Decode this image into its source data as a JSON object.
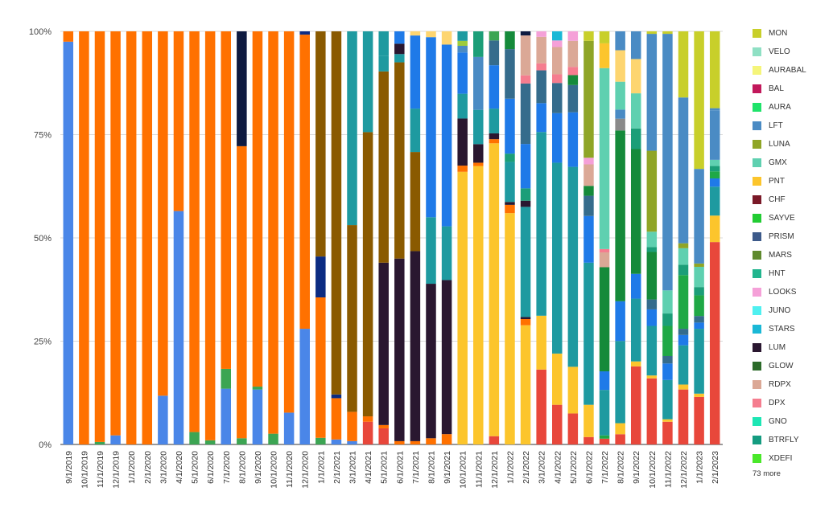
{
  "chart_data": {
    "type": "bar",
    "stacked": "percent",
    "grid": true,
    "legend_placement": "right",
    "yticks": [
      "0%",
      "25%",
      "50%",
      "75%",
      "100%"
    ],
    "categories": [
      "9/1/2019",
      "10/1/2019",
      "11/1/2019",
      "12/1/2019",
      "1/1/2020",
      "2/1/2020",
      "3/1/2020",
      "4/1/2020",
      "5/1/2020",
      "6/1/2020",
      "7/1/2020",
      "8/1/2020",
      "9/1/2020",
      "10/1/2020",
      "11/1/2020",
      "12/1/2020",
      "1/1/2021",
      "2/1/2021",
      "3/1/2021",
      "4/1/2021",
      "5/1/2021",
      "6/1/2021",
      "7/1/2021",
      "8/1/2021",
      "9/1/2021",
      "10/1/2021",
      "11/1/2021",
      "12/1/2021",
      "1/1/2022",
      "2/1/2022",
      "3/1/2022",
      "4/1/2022",
      "5/1/2022",
      "6/1/2022",
      "7/1/2022",
      "8/1/2022",
      "9/1/2022",
      "10/1/2022",
      "11/1/2022",
      "12/1/2022",
      "1/1/2023",
      "2/1/2023"
    ],
    "legend": [
      {
        "name": "MON",
        "color": "#c8cf2a"
      },
      {
        "name": "VELO",
        "color": "#8fe0c4"
      },
      {
        "name": "AURABAL",
        "color": "#f5f57a"
      },
      {
        "name": "BAL",
        "color": "#c2185b"
      },
      {
        "name": "AURA",
        "color": "#1fe36a"
      },
      {
        "name": "LFT",
        "color": "#4a8bc4"
      },
      {
        "name": "LUNA",
        "color": "#8fa526"
      },
      {
        "name": "GMX",
        "color": "#5fd0b0"
      },
      {
        "name": "PNT",
        "color": "#fcc52c"
      },
      {
        "name": "CHF",
        "color": "#7a1928"
      },
      {
        "name": "SAYVE",
        "color": "#22cc33"
      },
      {
        "name": "PRISM",
        "color": "#3d5a8a"
      },
      {
        "name": "MARS",
        "color": "#5f8a2e"
      },
      {
        "name": "HNT",
        "color": "#22b58e"
      },
      {
        "name": "LOOKS",
        "color": "#f5a0d8"
      },
      {
        "name": "JUNO",
        "color": "#4ff0f0"
      },
      {
        "name": "STARS",
        "color": "#1ab8d6"
      },
      {
        "name": "LUM",
        "color": "#2a1730"
      },
      {
        "name": "GLOW",
        "color": "#2c6b2a"
      },
      {
        "name": "RDPX",
        "color": "#dba896"
      },
      {
        "name": "DPX",
        "color": "#f57d8f"
      },
      {
        "name": "GNO",
        "color": "#1de6b4"
      },
      {
        "name": "BTRFLY",
        "color": "#149c80"
      },
      {
        "name": "XDEFI",
        "color": "#4ae82a"
      }
    ],
    "more_label": "73 more",
    "segment_palette": {
      "blue": "#4a86e8",
      "orange": "#ff7100",
      "green": "#3ca553",
      "navy": "#0e1a40",
      "darknavy": "#0b2b82",
      "brown": "#8a5a00",
      "teal": "#1e9aa0",
      "darkpurple": "#2a1730",
      "red": "#e8473b",
      "yellow": "#fcc52c",
      "brightblue": "#1f7ae8",
      "medblue": "#4a8bc4",
      "seagreen": "#1b9e78",
      "midgreen": "#158a3a",
      "paleyellow": "#fdd570",
      "maroon": "#7a1928",
      "tan": "#dba896",
      "pink": "#f57d8f",
      "lightpink": "#f5a0d8",
      "mint": "#5fd0b0",
      "lime": "#9ecc3b",
      "olive": "#8fa526",
      "mon": "#c8cf2a",
      "bgreen": "#1fa846",
      "gray": "#8a8a8a",
      "slate": "#356c8c",
      "cyan": "#1ab8d6",
      "lightgreen": "#4ae82a"
    },
    "stacks": [
      [
        [
          "blue",
          97.5
        ],
        [
          "orange",
          2.5
        ]
      ],
      [
        [
          "orange",
          100
        ]
      ],
      [
        [
          "green",
          0.6
        ],
        [
          "orange",
          99.4
        ]
      ],
      [
        [
          "blue",
          2.2
        ],
        [
          "orange",
          97.8
        ]
      ],
      [
        [
          "orange",
          100
        ]
      ],
      [
        [
          "orange",
          100
        ]
      ],
      [
        [
          "blue",
          11.8
        ],
        [
          "orange",
          88.2
        ]
      ],
      [
        [
          "blue",
          56.5
        ],
        [
          "orange",
          43.5
        ]
      ],
      [
        [
          "green",
          3
        ],
        [
          "orange",
          97
        ]
      ],
      [
        [
          "green",
          1
        ],
        [
          "orange",
          99
        ]
      ],
      [
        [
          "blue",
          13.5
        ],
        [
          "green",
          4.8
        ],
        [
          "orange",
          81.7
        ]
      ],
      [
        [
          "green",
          1.5
        ],
        [
          "orange",
          70.7
        ],
        [
          "navy",
          27.8
        ]
      ],
      [
        [
          "blue",
          13.3
        ],
        [
          "green",
          0.7
        ],
        [
          "orange",
          86
        ]
      ],
      [
        [
          "green",
          2.6
        ],
        [
          "orange",
          97.4
        ]
      ],
      [
        [
          "blue",
          7.7
        ],
        [
          "orange",
          92.3
        ]
      ],
      [
        [
          "blue",
          28
        ],
        [
          "orange",
          71.2
        ],
        [
          "darknavy",
          0.8
        ]
      ],
      [
        [
          "green",
          1.6
        ],
        [
          "orange",
          34
        ],
        [
          "darknavy",
          9.9
        ],
        [
          "brown",
          54.5
        ]
      ],
      [
        [
          "blue",
          1.2
        ],
        [
          "orange",
          10
        ],
        [
          "darknavy",
          0.9
        ],
        [
          "brown",
          87.9
        ]
      ],
      [
        [
          "blue",
          0.8
        ],
        [
          "orange",
          7.1
        ],
        [
          "brown",
          45.2
        ],
        [
          "teal",
          46.9
        ]
      ],
      [
        [
          "red",
          5.5
        ],
        [
          "orange",
          1.3
        ],
        [
          "brown",
          68.8
        ],
        [
          "teal",
          24.4
        ]
      ],
      [
        [
          "red",
          3.9
        ],
        [
          "orange",
          0.8
        ],
        [
          "darkpurple",
          39.3
        ],
        [
          "brown",
          46.3
        ],
        [
          "teal",
          3.8
        ],
        [
          "teal",
          5.9
        ]
      ],
      [
        [
          "orange",
          0.8
        ],
        [
          "darkpurple",
          44.2
        ],
        [
          "brown",
          47.5
        ],
        [
          "teal",
          2
        ],
        [
          "darkpurple",
          2.5
        ],
        [
          "brightblue",
          3
        ]
      ],
      [
        [
          "orange",
          0.8
        ],
        [
          "darkpurple",
          46
        ],
        [
          "brown",
          24
        ],
        [
          "teal",
          10.5
        ],
        [
          "brightblue",
          17.7
        ],
        [
          "paleyellow",
          1
        ]
      ],
      [
        [
          "orange",
          1.5
        ],
        [
          "darkpurple",
          37.4
        ],
        [
          "teal",
          16.1
        ],
        [
          "brightblue",
          43.6
        ],
        [
          "paleyellow",
          1.4
        ]
      ],
      [
        [
          "orange",
          2.5
        ],
        [
          "darkpurple",
          37.3
        ],
        [
          "teal",
          13
        ],
        [
          "brightblue",
          44
        ],
        [
          "paleyellow",
          3.2
        ]
      ],
      [
        [
          "yellow",
          66
        ],
        [
          "orange",
          1.5
        ],
        [
          "darkpurple",
          11.4
        ],
        [
          "teal",
          6
        ],
        [
          "brightblue",
          10
        ],
        [
          "medblue",
          1.6
        ],
        [
          "lime",
          1.2
        ],
        [
          "teal",
          2.3
        ]
      ],
      [
        [
          "yellow",
          67.4
        ],
        [
          "orange",
          0.8
        ],
        [
          "darkpurple",
          4.5
        ],
        [
          "teal",
          8.3
        ],
        [
          "medblue",
          12.8
        ],
        [
          "seagreen",
          6.2
        ]
      ],
      [
        [
          "red",
          2
        ],
        [
          "yellow",
          70.9
        ],
        [
          "orange",
          1
        ],
        [
          "darkpurple",
          1.4
        ],
        [
          "teal",
          6
        ],
        [
          "brightblue",
          10.5
        ],
        [
          "slate",
          6
        ],
        [
          "green",
          2.2
        ]
      ],
      [
        [
          "yellow",
          56
        ],
        [
          "orange",
          2
        ],
        [
          "darkpurple",
          0.7
        ],
        [
          "teal",
          9.7
        ],
        [
          "seagreen",
          2
        ],
        [
          "brightblue",
          13.3
        ],
        [
          "slate",
          12
        ],
        [
          "midgreen",
          4.3
        ]
      ],
      [
        [
          "yellow",
          29
        ],
        [
          "orange",
          1.5
        ],
        [
          "darkpurple",
          0.5
        ],
        [
          "teal",
          26.8
        ],
        [
          "darkpurple",
          1.5
        ],
        [
          "seagreen",
          3
        ],
        [
          "brightblue",
          10.8
        ],
        [
          "slate",
          14.7
        ],
        [
          "pink",
          2
        ],
        [
          "tan",
          9.7
        ],
        [
          "navy",
          1
        ]
      ],
      [
        [
          "red",
          19.2
        ],
        [
          "yellow",
          13.8
        ],
        [
          "teal",
          47.1
        ],
        [
          "brightblue",
          7.4
        ],
        [
          "slate",
          8.4
        ],
        [
          "pink",
          1.8
        ],
        [
          "tan",
          6.8
        ],
        [
          "lightpink",
          1.4
        ]
      ],
      [
        [
          "red",
          9.6
        ],
        [
          "yellow",
          12.4
        ],
        [
          "teal",
          46.2
        ],
        [
          "brightblue",
          12
        ],
        [
          "slate",
          7.3
        ],
        [
          "pink",
          2.1
        ],
        [
          "tan",
          6.6
        ],
        [
          "lightpink",
          1.6
        ],
        [
          "cyan",
          2.2
        ]
      ],
      [
        [
          "red",
          7.5
        ],
        [
          "yellow",
          11.3
        ],
        [
          "teal",
          48.4
        ],
        [
          "brightblue",
          13.2
        ],
        [
          "slate",
          6.6
        ],
        [
          "midgreen",
          2.4
        ],
        [
          "pink",
          2
        ],
        [
          "tan",
          6.3
        ],
        [
          "lightpink",
          2.3
        ]
      ],
      [
        [
          "red",
          1.8
        ],
        [
          "yellow",
          7.8
        ],
        [
          "teal",
          34.4
        ],
        [
          "brightblue",
          11.3
        ],
        [
          "slate",
          4.9
        ],
        [
          "midgreen",
          2.4
        ],
        [
          "tan",
          5.2
        ],
        [
          "lightpink",
          1.6
        ],
        [
          "olive",
          28.3
        ],
        [
          "mon",
          2.3
        ]
      ],
      [
        [
          "red",
          1.4
        ],
        [
          "bgreen",
          0.8
        ],
        [
          "teal",
          11
        ],
        [
          "brightblue",
          4.5
        ],
        [
          "midgreen",
          25.2
        ],
        [
          "tan",
          3.6
        ],
        [
          "pink",
          0.8
        ],
        [
          "mint",
          43.8
        ],
        [
          "yellow",
          6
        ],
        [
          "mon",
          2.9
        ]
      ],
      [
        [
          "red",
          2.6
        ],
        [
          "yellow",
          2.8
        ],
        [
          "teal",
          20.9
        ],
        [
          "brightblue",
          10.1
        ],
        [
          "midgreen",
          43.4
        ],
        [
          "gray",
          3
        ],
        [
          "medblue",
          2.3
        ],
        [
          "mint",
          7.1
        ],
        [
          "paleyellow",
          8
        ],
        [
          "medblue",
          4.8
        ]
      ],
      [
        [
          "red",
          18.9
        ],
        [
          "yellow",
          1.2
        ],
        [
          "teal",
          15.2
        ],
        [
          "brightblue",
          6
        ],
        [
          "midgreen",
          30.2
        ],
        [
          "seagreen",
          5
        ],
        [
          "mint",
          8.5
        ],
        [
          "paleyellow",
          8.3
        ],
        [
          "medblue",
          6.7
        ]
      ],
      [
        [
          "red",
          16
        ],
        [
          "yellow",
          0.7
        ],
        [
          "teal",
          12
        ],
        [
          "brightblue",
          4
        ],
        [
          "slate",
          2.4
        ],
        [
          "midgreen",
          11.5
        ],
        [
          "seagreen",
          1.2
        ],
        [
          "mint",
          3.7
        ],
        [
          "olive",
          19.6
        ],
        [
          "medblue",
          28.3
        ],
        [
          "mon",
          0.6
        ]
      ],
      [
        [
          "red",
          5.5
        ],
        [
          "yellow",
          0.6
        ],
        [
          "teal",
          9.5
        ],
        [
          "brightblue",
          4
        ],
        [
          "slate",
          1.8
        ],
        [
          "bgreen",
          7.3
        ],
        [
          "seagreen",
          3
        ],
        [
          "mint",
          5.6
        ],
        [
          "medblue",
          62.1
        ],
        [
          "mon",
          0.6
        ]
      ],
      [
        [
          "red",
          13.3
        ],
        [
          "yellow",
          1.2
        ],
        [
          "teal",
          9.5
        ],
        [
          "brightblue",
          2.5
        ],
        [
          "slate",
          1.5
        ],
        [
          "bgreen",
          13
        ],
        [
          "seagreen",
          2.5
        ],
        [
          "mint",
          4
        ],
        [
          "olive",
          1.2
        ],
        [
          "medblue",
          35.3
        ],
        [
          "mon",
          16
        ]
      ],
      [
        [
          "red",
          11.5
        ],
        [
          "yellow",
          0.8
        ],
        [
          "teal",
          15.7
        ],
        [
          "brightblue",
          1.5
        ],
        [
          "slate",
          1.6
        ],
        [
          "bgreen",
          5
        ],
        [
          "seagreen",
          2
        ],
        [
          "mint",
          4.9
        ],
        [
          "olive",
          0.8
        ],
        [
          "medblue",
          22.9
        ],
        [
          "mon",
          33.3
        ]
      ],
      [
        [
          "red",
          49
        ],
        [
          "yellow",
          6.4
        ],
        [
          "teal",
          7
        ],
        [
          "brightblue",
          2
        ],
        [
          "bgreen",
          1.7
        ],
        [
          "seagreen",
          1.3
        ],
        [
          "mint",
          1.5
        ],
        [
          "medblue",
          12
        ],
        [
          "medblue",
          0.5
        ],
        [
          "mon",
          18.6
        ]
      ]
    ]
  }
}
